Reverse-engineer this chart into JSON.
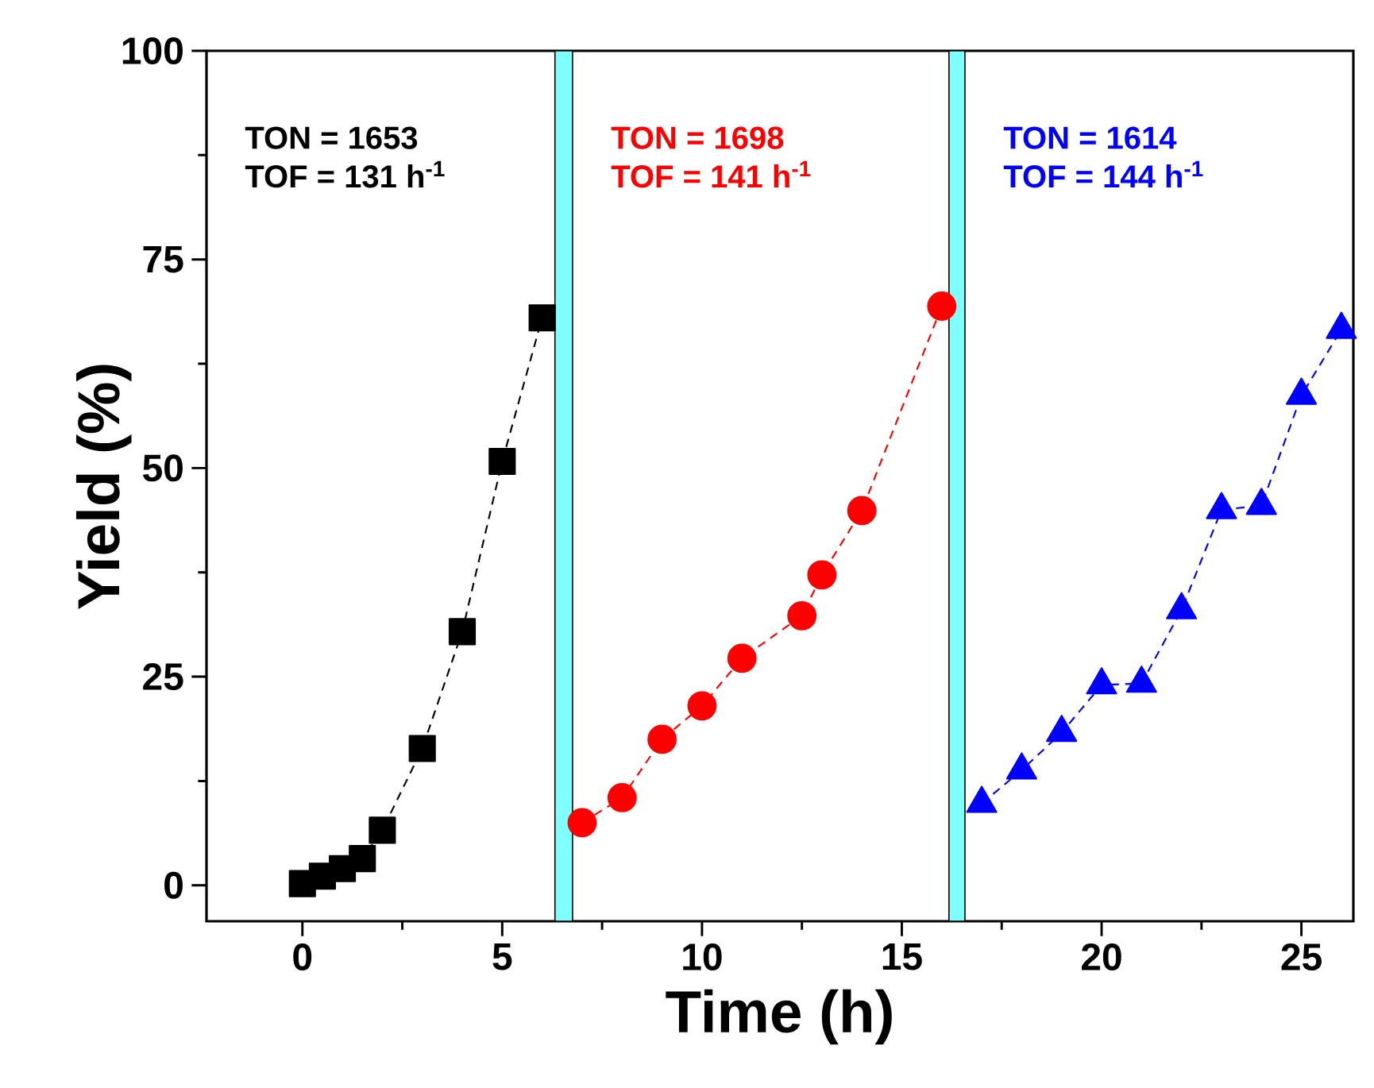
{
  "chart_data": {
    "type": "line",
    "xlabel": "Time (h)",
    "ylabel": "Yield (%)",
    "series": [
      {
        "color": "#000000",
        "marker": "square",
        "line_style": "dashed",
        "x": [
          0,
          0.5,
          1,
          1.5,
          2,
          3,
          4,
          5,
          6
        ],
        "values": [
          0.2,
          1.1,
          2,
          3.2,
          6.6,
          16.4,
          30.4,
          50.8,
          68
        ]
      },
      {
        "color": "#ff0000",
        "marker": "circle",
        "line_style": "dashed",
        "x": [
          7,
          8,
          9,
          10,
          11,
          12.5,
          13,
          14,
          16
        ],
        "values": [
          7.5,
          10.5,
          17.5,
          21.5,
          27.2,
          32.3,
          37.2,
          44.9,
          69.4
        ]
      },
      {
        "color": "#0000ff",
        "marker": "triangle",
        "line_style": "dashed",
        "x": [
          17,
          18,
          19,
          20,
          21,
          22,
          23,
          24,
          25,
          26
        ],
        "values": [
          9.8,
          13.8,
          18.3,
          24,
          24.2,
          33,
          45,
          45.5,
          58.7,
          66.6
        ]
      }
    ],
    "bands": [
      {
        "axis": "x",
        "from": 6.32,
        "to": 6.76,
        "color": "#80ffff"
      },
      {
        "axis": "x",
        "from": 16.18,
        "to": 16.58,
        "color": "#80ffff"
      }
    ],
    "annotations": [
      "TON = 1653",
      "TOF = 131 h$^{-1}$",
      "TON = 1698",
      "TOF = 141 h$^{-1}$",
      "TON = 1614",
      "TOF = 144 h$^{-1}$"
    ],
    "xlim": [
      -2.4,
      26.3
    ],
    "ylim": [
      -4.3,
      100
    ],
    "xticks": [
      0,
      5,
      10,
      15,
      20,
      25
    ],
    "yticks": [
      0,
      25,
      50,
      75,
      100
    ]
  }
}
